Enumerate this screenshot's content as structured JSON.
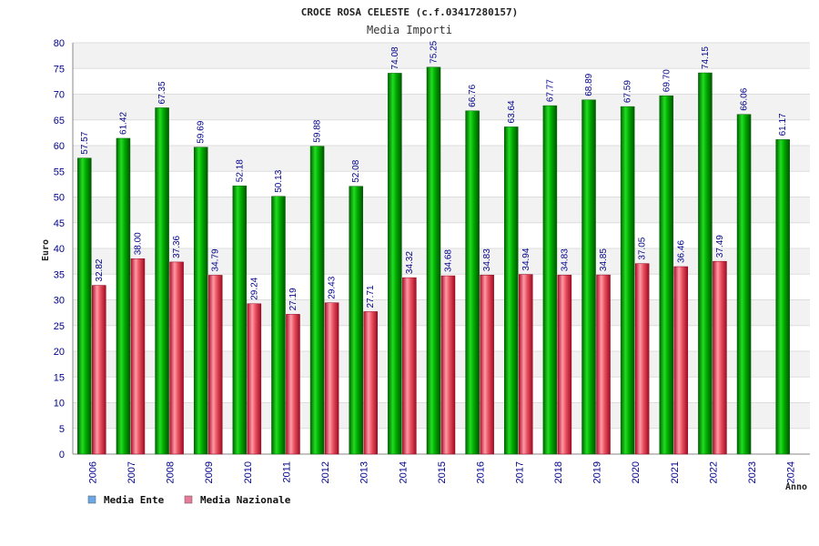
{
  "chart_data": {
    "type": "bar",
    "title": "CROCE ROSA CELESTE (c.f.03417280157)",
    "subtitle": "Media Importi",
    "xlabel": "Anno",
    "ylabel": "Euro",
    "ylim": [
      0,
      80
    ],
    "ytick_step": 5,
    "categories": [
      "2006",
      "2007",
      "2008",
      "2009",
      "2010",
      "2011",
      "2012",
      "2013",
      "2014",
      "2015",
      "2016",
      "2017",
      "2018",
      "2019",
      "2020",
      "2021",
      "2022",
      "2023",
      "2024"
    ],
    "series": [
      {
        "name": "Media Ente",
        "color": "#00b400",
        "legend_color": "#6aa8e8",
        "values": [
          57.57,
          61.42,
          67.35,
          59.69,
          52.18,
          50.13,
          59.88,
          52.08,
          74.08,
          75.25,
          66.76,
          63.64,
          67.77,
          68.89,
          67.59,
          69.7,
          74.15,
          66.06,
          61.17
        ],
        "labels": [
          "57.57",
          "61.42",
          "67.35",
          "59.69",
          "52.18",
          "50.13",
          "59.88",
          "52.08",
          "74.08",
          "75.25",
          "66.76",
          "63.64",
          "67.77",
          "68.89",
          "67.59",
          "69.70",
          "74.15",
          "66.06",
          "61.17"
        ]
      },
      {
        "name": "Media Nazionale",
        "color": "#e0404a",
        "legend_color": "#e87a9a",
        "values": [
          32.82,
          38.0,
          37.36,
          34.79,
          29.24,
          27.19,
          29.43,
          27.71,
          34.32,
          34.68,
          34.83,
          34.94,
          34.83,
          34.85,
          37.05,
          36.46,
          37.49,
          null,
          null
        ],
        "labels": [
          "32.82",
          "38.00",
          "37.36",
          "34.79",
          "29.24",
          "27.19",
          "29.43",
          "27.71",
          "34.32",
          "34.68",
          "34.83",
          "34.94",
          "34.83",
          "34.85",
          "37.05",
          "36.46",
          "37.49",
          null,
          null
        ]
      }
    ],
    "grid": true,
    "legend": "bottom-left"
  }
}
